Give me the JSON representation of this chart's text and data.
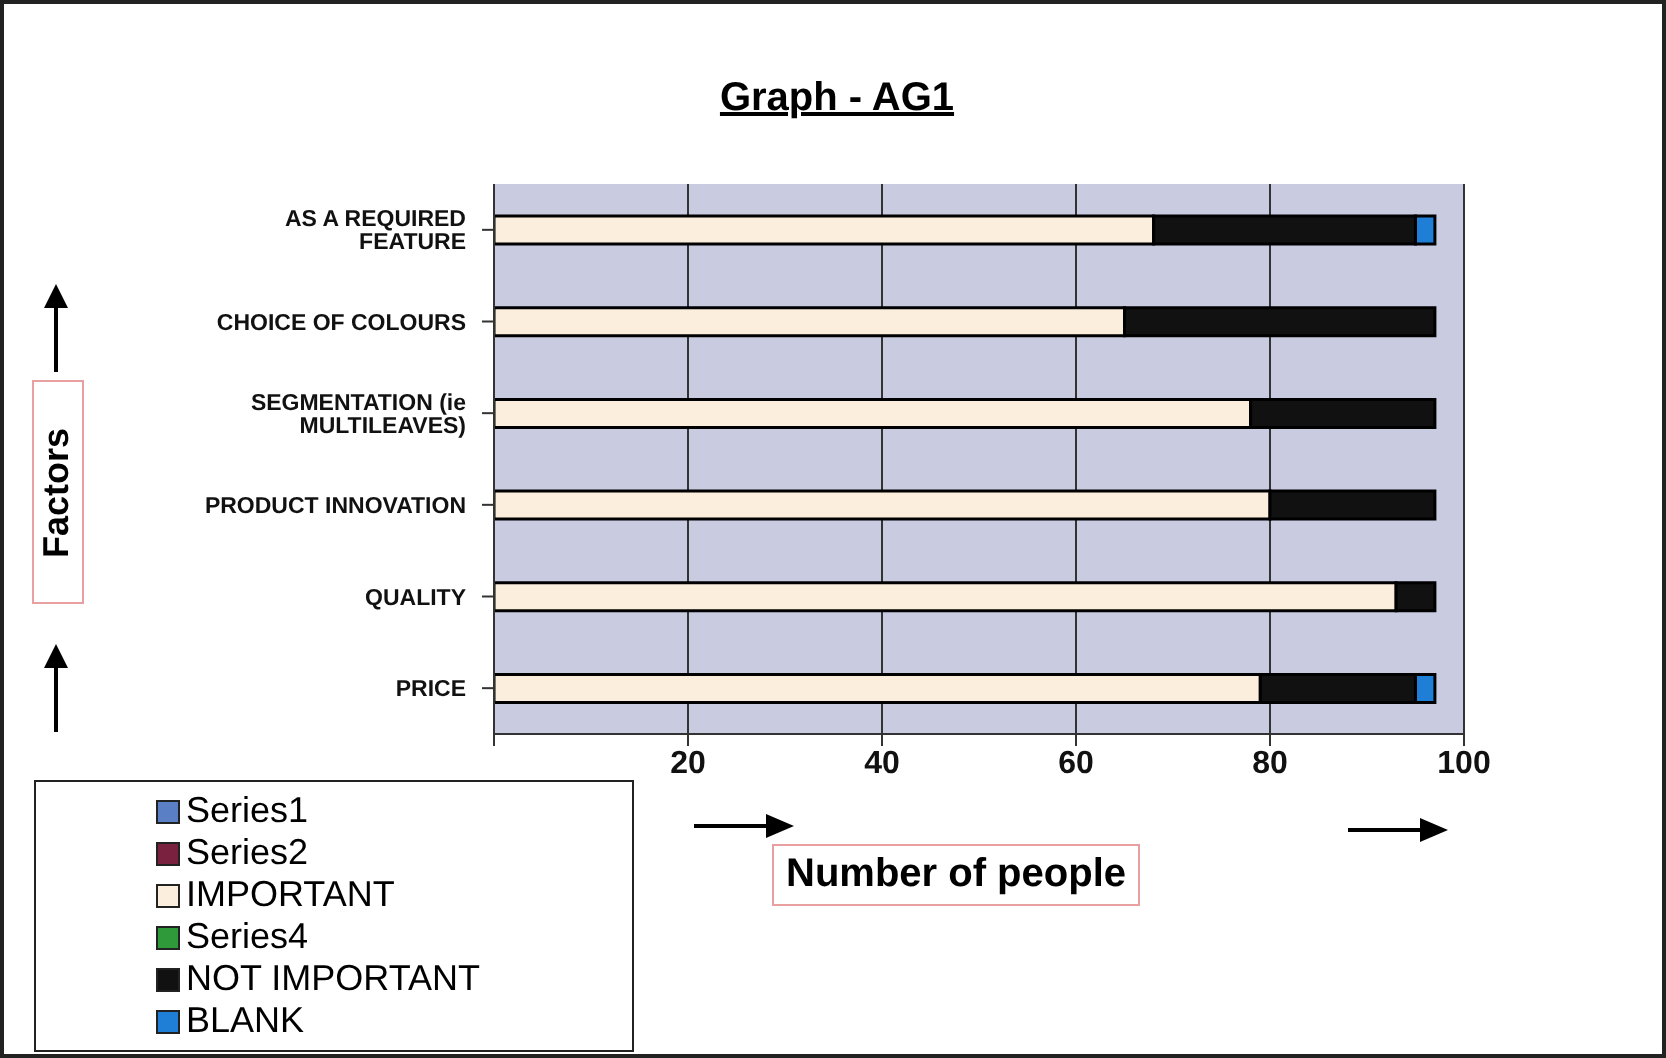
{
  "chart_data": {
    "type": "bar",
    "orientation": "horizontal",
    "stacked": true,
    "title": "Graph - AG1",
    "xlabel": "Number of people",
    "ylabel": "Factors",
    "categories": [
      "AS A REQUIRED FEATURE",
      "CHOICE OF COLOURS",
      "SEGMENTATION (ie MULTILEAVES)",
      "PRODUCT INNOVATION",
      "QUALITY",
      "PRICE"
    ],
    "series": [
      {
        "name": "Series1",
        "color": "#5b7fc4",
        "values": [
          null,
          null,
          null,
          null,
          null,
          null
        ]
      },
      {
        "name": "Series2",
        "color": "#7a2140",
        "values": [
          null,
          null,
          null,
          null,
          null,
          null
        ]
      },
      {
        "name": "IMPORTANT",
        "color": "#fbeedd",
        "values": [
          68,
          65,
          78,
          80,
          93,
          79
        ]
      },
      {
        "name": "Series4",
        "color": "#2e9a3a",
        "values": [
          null,
          null,
          null,
          null,
          null,
          null
        ]
      },
      {
        "name": "NOT IMPORTANT",
        "color": "#111111",
        "values": [
          27,
          32,
          19,
          17,
          4,
          16
        ]
      },
      {
        "name": "BLANK",
        "color": "#1f7fd6",
        "values": [
          2,
          null,
          null,
          null,
          null,
          2
        ]
      }
    ],
    "xlim": [
      0,
      100
    ],
    "xticks": [
      {
        "value": 0,
        "label": null
      },
      20,
      40,
      60,
      80,
      100
    ],
    "grid": "x",
    "legend": "bottom left"
  }
}
